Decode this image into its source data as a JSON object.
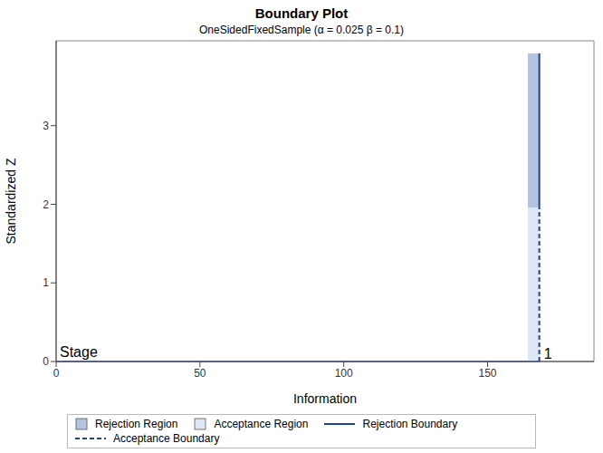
{
  "chart_data": {
    "type": "boundary",
    "title": "Boundary Plot",
    "subtitle": "OneSidedFixedSample (α = 0.025  β = 0.1)",
    "x_label": "Information",
    "y_label": "Standardized Z",
    "xlim": [
      0,
      187
    ],
    "ylim": [
      0,
      4.08
    ],
    "xticks": [
      0,
      50,
      100,
      150
    ],
    "yticks": [
      0,
      1,
      2,
      3
    ],
    "stage_label": "Stage",
    "stages": [
      {
        "name": "1",
        "information": 168,
        "region_from": 164,
        "rejection_boundary": 1.96,
        "acceptance_boundary": 1.96,
        "rejection_region_top": 3.92
      }
    ],
    "series": [
      {
        "name": "Rejection Region",
        "type": "area",
        "color": "#b4c4df"
      },
      {
        "name": "Acceptance Region",
        "type": "area",
        "color": "#dfe7f4"
      },
      {
        "name": "Rejection Boundary",
        "type": "line",
        "color": "#1d3f9e",
        "line_style": "solid"
      },
      {
        "name": "Acceptance Boundary",
        "type": "line",
        "color": "#1d3f9e",
        "line_style": "dashed"
      }
    ],
    "legend": "bottom"
  }
}
